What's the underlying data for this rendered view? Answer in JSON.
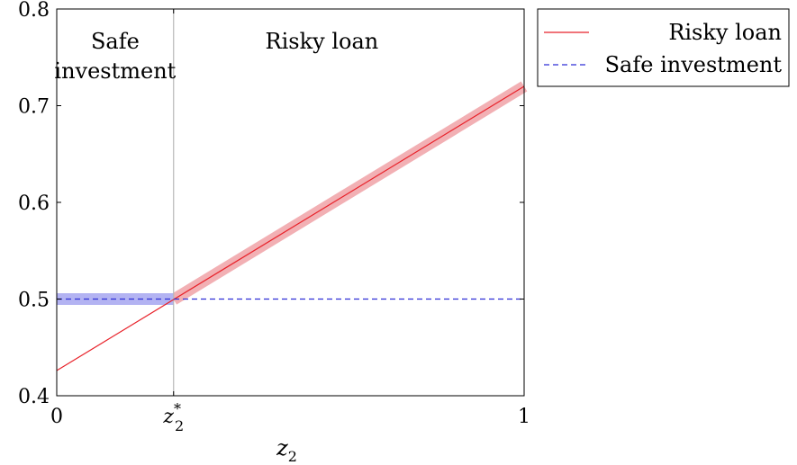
{
  "chart_data": {
    "type": "line",
    "xlabel": "z",
    "xlabel_subscript": "2",
    "xlim": [
      0,
      1
    ],
    "ylim": [
      0.4,
      0.8
    ],
    "x_ticks": [
      {
        "value": 0,
        "label": "0"
      },
      {
        "value": 0.25,
        "label": "z",
        "sub": "2",
        "sup": "*"
      },
      {
        "value": 1,
        "label": "1"
      }
    ],
    "y_ticks": [
      {
        "value": 0.4,
        "label": "0.4"
      },
      {
        "value": 0.5,
        "label": "0.5"
      },
      {
        "value": 0.6,
        "label": "0.6"
      },
      {
        "value": 0.7,
        "label": "0.7"
      },
      {
        "value": 0.8,
        "label": "0.8"
      }
    ],
    "threshold_x": 0.25,
    "regions": [
      {
        "label_lines": [
          "Safe",
          "investment"
        ]
      },
      {
        "label_lines": [
          "Risky loan"
        ]
      }
    ],
    "series": [
      {
        "name": "Risky loan",
        "color": "#e8222a",
        "highlight_color": "#f2b0b4",
        "style": "solid",
        "x": [
          0,
          1
        ],
        "y": [
          0.426,
          0.72
        ],
        "highlight_range": [
          0.25,
          1
        ]
      },
      {
        "name": "Safe investment",
        "color": "#2f2fd6",
        "highlight_color": "#b3b3f2",
        "style": "dashed",
        "x": [
          0,
          1
        ],
        "y": [
          0.5,
          0.5
        ],
        "highlight_range": [
          0,
          0.25
        ]
      }
    ],
    "legend_position": "outside-top-right",
    "grid": false
  }
}
